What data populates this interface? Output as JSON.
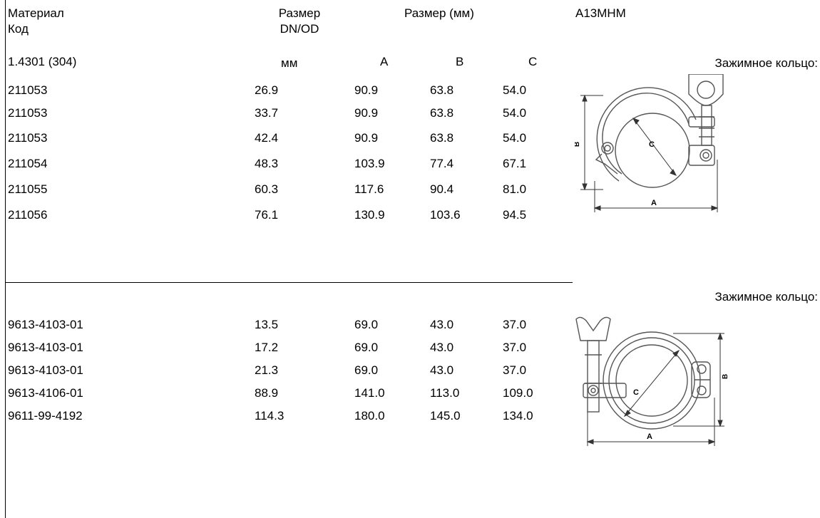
{
  "header": {
    "material_label": "Материал",
    "code_label": "Код",
    "size_label": "Размер",
    "size_sub": "DN/OD",
    "size_mm_label": "Размер (мм)",
    "model": "A13MHM"
  },
  "subheader": {
    "material_value": "1.4301 (304)",
    "unit": "мм",
    "col_a": "A",
    "col_b": "B",
    "col_c": "C",
    "clamp_title": "Зажимное кольцо:"
  },
  "table1": {
    "rows": [
      {
        "code": "211053",
        "dn": "26.9",
        "a": "90.9",
        "b": "63.8",
        "c": "54.0"
      },
      {
        "code": "211053",
        "dn": "33.7",
        "a": "90.9",
        "b": "63.8",
        "c": "54.0"
      },
      {
        "code": "211053",
        "dn": "42.4",
        "a": "90.9",
        "b": "63.8",
        "c": "54.0"
      },
      {
        "code": "211054",
        "dn": "48.3",
        "a": "103.9",
        "b": "77.4",
        "c": "67.1"
      },
      {
        "code": "211055",
        "dn": "60.3",
        "a": "117.6",
        "b": "90.4",
        "c": "81.0"
      },
      {
        "code": "211056",
        "dn": "76.1",
        "a": "130.9",
        "b": "103.6",
        "c": "94.5"
      }
    ]
  },
  "section2": {
    "clamp_title": "Зажимное кольцо:"
  },
  "table2": {
    "rows": [
      {
        "code": "9613-4103-01",
        "dn": "13.5",
        "a": "69.0",
        "b": "43.0",
        "c": "37.0"
      },
      {
        "code": "9613-4103-01",
        "dn": "17.2",
        "a": "69.0",
        "b": "43.0",
        "c": "37.0"
      },
      {
        "code": "9613-4103-01",
        "dn": "21.3",
        "a": "69.0",
        "b": "43.0",
        "c": "37.0"
      },
      {
        "code": "9613-4106-01",
        "dn": "88.9",
        "a": "141.0",
        "b": "113.0",
        "c": "109.0"
      },
      {
        "code": "9611-99-4192",
        "dn": "114.3",
        "a": "180.0",
        "b": "145.0",
        "c": "134.0"
      }
    ]
  },
  "drawing1": {
    "label_a": "A",
    "label_b": "B",
    "label_c": "C"
  },
  "drawing2": {
    "label_a": "A",
    "label_b": "B",
    "label_c": "C"
  }
}
